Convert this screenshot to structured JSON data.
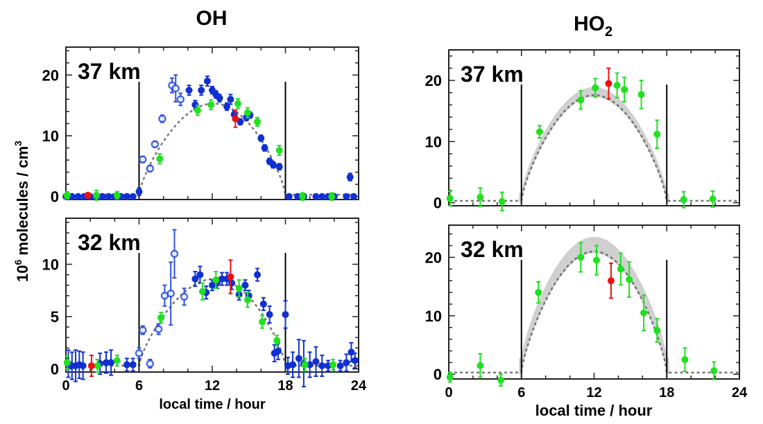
{
  "titles": {
    "left": "OH",
    "right_main": "HO",
    "right_sub": "2"
  },
  "ylabel": {
    "main": "10",
    "sup": "6",
    "rest": " molecules / cm",
    "sup2": "3"
  },
  "xlabel": "local time / hour",
  "colors": {
    "filled": "#1030d0",
    "open": "#3050e0",
    "green": "#20e020",
    "red": "#ee1010",
    "model": "#555555",
    "band": "#c8c8c8",
    "sun_line": "#000000"
  },
  "chart_data": [
    {
      "type": "scatter",
      "species": "OH",
      "label": "37 km",
      "xlim": [
        0,
        24
      ],
      "ylim": [
        -0.5,
        24.6
      ],
      "yticks": [
        0,
        10,
        20
      ],
      "xticks": [
        0,
        6,
        12,
        18,
        24
      ],
      "show_xticklabels": false,
      "sun_lines": [
        6,
        18
      ],
      "model": {
        "peak": 15,
        "peak_hour": 12.5,
        "band": null
      },
      "series": [
        {
          "style": "open",
          "points": [
            [
              6.3,
              6.1,
              0.5
            ],
            [
              6.9,
              4.6,
              0.5
            ],
            [
              7.3,
              8.6,
              0.5
            ],
            [
              7.9,
              12.8,
              0.6
            ],
            [
              8.7,
              18.3,
              1.2
            ],
            [
              9.0,
              17.8,
              2.2
            ],
            [
              9.4,
              16.0,
              1.0
            ]
          ]
        },
        {
          "style": "filled",
          "points": [
            [
              0,
              0,
              0.3
            ],
            [
              0.5,
              0,
              0.3
            ],
            [
              1,
              0,
              0.3
            ],
            [
              1.5,
              0,
              0.3
            ],
            [
              2,
              0,
              0.3
            ],
            [
              2.5,
              0,
              0.3
            ],
            [
              3,
              0,
              0.3
            ],
            [
              3.5,
              0,
              0.3
            ],
            [
              4,
              0,
              0.3
            ],
            [
              4.5,
              0,
              0.3
            ],
            [
              5,
              0,
              0.3
            ],
            [
              5.5,
              0,
              0.3
            ],
            [
              6.0,
              0.8,
              0.6
            ],
            [
              10.1,
              17.5,
              0.8
            ],
            [
              10.6,
              15.1,
              0.7
            ],
            [
              11.1,
              17.5,
              0.8
            ],
            [
              11.6,
              19.0,
              0.8
            ],
            [
              12.0,
              17.5,
              0.6
            ],
            [
              12.3,
              16.8,
              0.6
            ],
            [
              12.6,
              16.2,
              0.6
            ],
            [
              13.2,
              14.8,
              0.6
            ],
            [
              13.5,
              16.0,
              0.8
            ],
            [
              13.8,
              13.5,
              0.6
            ],
            [
              14.3,
              12.3,
              0.5
            ],
            [
              14.8,
              13.0,
              0.5
            ],
            [
              15.1,
              13.4,
              0.5
            ],
            [
              16.0,
              9.6,
              0.5
            ],
            [
              16.3,
              8.0,
              0.5
            ],
            [
              16.7,
              5.8,
              0.5
            ],
            [
              17.0,
              5.2,
              0.5
            ],
            [
              17.5,
              4.9,
              0.5
            ],
            [
              18.3,
              0,
              0.3
            ],
            [
              19,
              0,
              0.3
            ],
            [
              19.5,
              0,
              0.3
            ],
            [
              20.5,
              0,
              0.3
            ],
            [
              21,
              0,
              0.3
            ],
            [
              21.5,
              0,
              0.3
            ],
            [
              22,
              0,
              0.3
            ],
            [
              23,
              0,
              0.3
            ],
            [
              23.6,
              0,
              0.3
            ],
            [
              23.3,
              3.2,
              0.6
            ]
          ]
        },
        {
          "style": "green",
          "points": [
            [
              0.1,
              0.2,
              0.6
            ],
            [
              2.5,
              0.2,
              0.8
            ],
            [
              4.2,
              0.2,
              0.6
            ],
            [
              7.7,
              6.2,
              0.8
            ],
            [
              10.8,
              14.2,
              0.8
            ],
            [
              11.9,
              15.1,
              0.8
            ],
            [
              14.1,
              15.3,
              0.8
            ],
            [
              14.9,
              13.8,
              0.8
            ],
            [
              15.7,
              12.3,
              0.7
            ],
            [
              17.5,
              7.6,
              0.8
            ],
            [
              19.4,
              0,
              0.6
            ],
            [
              21.8,
              0,
              0.6
            ]
          ]
        },
        {
          "style": "red",
          "points": [
            [
              1.8,
              0.2,
              0.4
            ],
            [
              13.9,
              12.8,
              1.4
            ]
          ]
        }
      ]
    },
    {
      "type": "scatter",
      "species": "OH",
      "label": "32 km",
      "xlim": [
        0,
        24
      ],
      "ylim": [
        -0.3,
        14.4
      ],
      "yticks": [
        0,
        5,
        10
      ],
      "xticks": [
        0,
        6,
        12,
        18,
        24
      ],
      "show_xticklabels": true,
      "sun_lines": [
        6,
        18
      ],
      "model": {
        "peak": 8.3,
        "peak_hour": 13,
        "band": null
      },
      "series": [
        {
          "style": "open",
          "points": [
            [
              6.3,
              3.7,
              0.4
            ],
            [
              6.9,
              0.5,
              0.4
            ],
            [
              7.6,
              3.8,
              0.5
            ],
            [
              8.1,
              7.0,
              1.0
            ],
            [
              8.6,
              7.2,
              3.0
            ],
            [
              8.9,
              11.0,
              2.3
            ],
            [
              9.7,
              6.9,
              0.8
            ],
            [
              6.0,
              1.5,
              0.5
            ]
          ]
        },
        {
          "style": "filled",
          "points": [
            [
              0.2,
              0.5,
              1.3
            ],
            [
              0.5,
              0.3,
              1.3
            ],
            [
              0.8,
              0.3,
              1.5
            ],
            [
              1.1,
              0.4,
              1.3
            ],
            [
              1.4,
              0.3,
              1.3
            ],
            [
              2.8,
              0.5,
              1.0
            ],
            [
              3.3,
              0.6,
              1.0
            ],
            [
              3.7,
              0.6,
              1.2
            ],
            [
              5.0,
              0.4,
              0.6
            ],
            [
              5.5,
              0.4,
              0.6
            ],
            [
              10.6,
              8.6,
              0.7
            ],
            [
              11.0,
              9.0,
              0.8
            ],
            [
              11.5,
              7.3,
              0.6
            ],
            [
              12.0,
              8.0,
              0.5
            ],
            [
              12.4,
              8.2,
              0.5
            ],
            [
              12.8,
              8.6,
              0.6
            ],
            [
              13.2,
              8.6,
              0.6
            ],
            [
              13.6,
              8.2,
              0.6
            ],
            [
              14.2,
              7.1,
              0.5
            ],
            [
              14.7,
              8.0,
              0.5
            ],
            [
              15.0,
              7.0,
              0.5
            ],
            [
              15.7,
              9.0,
              0.6
            ],
            [
              16.2,
              6.2,
              0.6
            ],
            [
              16.7,
              5.2,
              0.8
            ],
            [
              17.1,
              1.5,
              0.8
            ],
            [
              17.4,
              1.7,
              0.8
            ],
            [
              18.0,
              5.2,
              1.3
            ],
            [
              18.2,
              0.3,
              0.8
            ],
            [
              18.6,
              0.4,
              1.2
            ],
            [
              19.1,
              1.0,
              1.8
            ],
            [
              19.5,
              0.5,
              2.2
            ],
            [
              20.0,
              0.4,
              1.2
            ],
            [
              20.5,
              0.7,
              1.4
            ],
            [
              21.0,
              0.3,
              1.0
            ],
            [
              21.5,
              0.3,
              0.5
            ],
            [
              22.5,
              0.3,
              0.5
            ],
            [
              23.0,
              0.6,
              0.8
            ],
            [
              23.4,
              1.6,
              0.9
            ],
            [
              23.7,
              0.8,
              0.7
            ]
          ]
        },
        {
          "style": "green",
          "points": [
            [
              0.1,
              0.6,
              0.6
            ],
            [
              2.6,
              0.3,
              0.6
            ],
            [
              4.2,
              0.8,
              0.5
            ],
            [
              7.8,
              4.9,
              0.5
            ],
            [
              11.2,
              7.4,
              0.8
            ],
            [
              12.3,
              8.5,
              0.8
            ],
            [
              14.2,
              7.7,
              0.8
            ],
            [
              14.9,
              6.6,
              0.7
            ],
            [
              16.1,
              4.5,
              0.6
            ],
            [
              17.3,
              2.7,
              0.5
            ],
            [
              19.6,
              0.4,
              0.6
            ],
            [
              21.9,
              0.4,
              0.5
            ]
          ]
        },
        {
          "style": "red",
          "points": [
            [
              2.1,
              0.3,
              1.0
            ],
            [
              13.5,
              8.8,
              1.6
            ]
          ]
        }
      ]
    },
    {
      "type": "scatter",
      "species": "HO2",
      "label": "37 km",
      "xlim": [
        0,
        24
      ],
      "ylim": [
        -0.5,
        25
      ],
      "yticks": [
        0,
        10,
        20
      ],
      "xticks": [
        0,
        6,
        12,
        18,
        24
      ],
      "show_xticklabels": false,
      "sun_lines": [
        6,
        18
      ],
      "model": {
        "peak": 17.3,
        "peak_hour": 12,
        "band": 1.3
      },
      "series": [
        {
          "style": "green",
          "points": [
            [
              0.1,
              0.7,
              1.2
            ],
            [
              2.6,
              0.9,
              1.5
            ],
            [
              4.4,
              0.2,
              1.5
            ],
            [
              7.5,
              11.6,
              1.0
            ],
            [
              10.9,
              16.8,
              1.5
            ],
            [
              12.1,
              18.8,
              1.5
            ],
            [
              13.9,
              19.2,
              2.0
            ],
            [
              14.5,
              18.5,
              2.0
            ],
            [
              15.9,
              17.7,
              2.3
            ],
            [
              17.2,
              11.2,
              2.3
            ],
            [
              19.4,
              0.5,
              1.3
            ],
            [
              21.8,
              0.6,
              1.3
            ]
          ]
        },
        {
          "style": "red",
          "points": [
            [
              13.2,
              19.5,
              2.5
            ]
          ]
        }
      ]
    },
    {
      "type": "scatter",
      "species": "HO2",
      "label": "32 km",
      "xlim": [
        0,
        24
      ],
      "ylim": [
        -0.8,
        25.5
      ],
      "yticks": [
        0,
        10,
        20
      ],
      "xticks": [
        0,
        6,
        12,
        18,
        24
      ],
      "show_xticklabels": true,
      "sun_lines": [
        6,
        18
      ],
      "model": {
        "peak": 20.7,
        "peak_hour": 12,
        "band": 2.5
      },
      "series": [
        {
          "style": "green",
          "points": [
            [
              0.1,
              -0.5,
              0.8
            ],
            [
              2.6,
              1.5,
              2.0
            ],
            [
              4.3,
              -1.0,
              1.0
            ],
            [
              7.4,
              14.0,
              1.8
            ],
            [
              10.9,
              20.0,
              2.5
            ],
            [
              12.2,
              19.5,
              2.5
            ],
            [
              14.2,
              18.0,
              2.7
            ],
            [
              14.9,
              16.2,
              3.0
            ],
            [
              16.1,
              10.5,
              3.0
            ],
            [
              17.2,
              7.5,
              2.0
            ],
            [
              19.5,
              2.5,
              2.0
            ],
            [
              21.9,
              0.6,
              1.5
            ]
          ]
        },
        {
          "style": "red",
          "points": [
            [
              13.4,
              16.0,
              3.0
            ]
          ]
        }
      ]
    }
  ]
}
